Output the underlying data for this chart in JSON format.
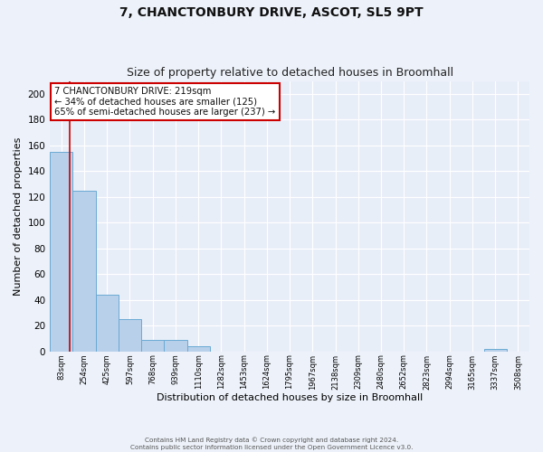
{
  "title": "7, CHANCTONBURY DRIVE, ASCOT, SL5 9PT",
  "subtitle": "Size of property relative to detached houses in Broomhall",
  "xlabel": "Distribution of detached houses by size in Broomhall",
  "ylabel": "Number of detached properties",
  "bar_values": [
    155,
    125,
    44,
    25,
    9,
    9,
    4,
    0,
    0,
    0,
    0,
    0,
    0,
    0,
    0,
    0,
    0,
    0,
    0,
    2,
    0
  ],
  "bin_labels": [
    "83sqm",
    "254sqm",
    "425sqm",
    "597sqm",
    "768sqm",
    "939sqm",
    "1110sqm",
    "1282sqm",
    "1453sqm",
    "1624sqm",
    "1795sqm",
    "1967sqm",
    "2138sqm",
    "2309sqm",
    "2480sqm",
    "2652sqm",
    "2823sqm",
    "2994sqm",
    "3165sqm",
    "3337sqm",
    "3508sqm"
  ],
  "bar_color": "#b8d0ea",
  "bar_edge_color": "#6aaad4",
  "property_line_bin_index": 0.88,
  "annotation_text": "7 CHANCTONBURY DRIVE: 219sqm\n← 34% of detached houses are smaller (125)\n65% of semi-detached houses are larger (237) →",
  "annotation_box_color": "#ffffff",
  "annotation_box_edge": "#cc0000",
  "vline_color": "#cc0000",
  "footer_line1": "Contains HM Land Registry data © Crown copyright and database right 2024.",
  "footer_line2": "Contains public sector information licensed under the Open Government Licence v3.0.",
  "ylim": [
    0,
    210
  ],
  "yticks": [
    0,
    20,
    40,
    60,
    80,
    100,
    120,
    140,
    160,
    180,
    200
  ],
  "bg_color": "#e8eef8",
  "fig_bg_color": "#edf2fa",
  "grid_color": "#ffffff",
  "title_fontsize": 10,
  "subtitle_fontsize": 9,
  "xlabel_fontsize": 8,
  "ylabel_fontsize": 8
}
